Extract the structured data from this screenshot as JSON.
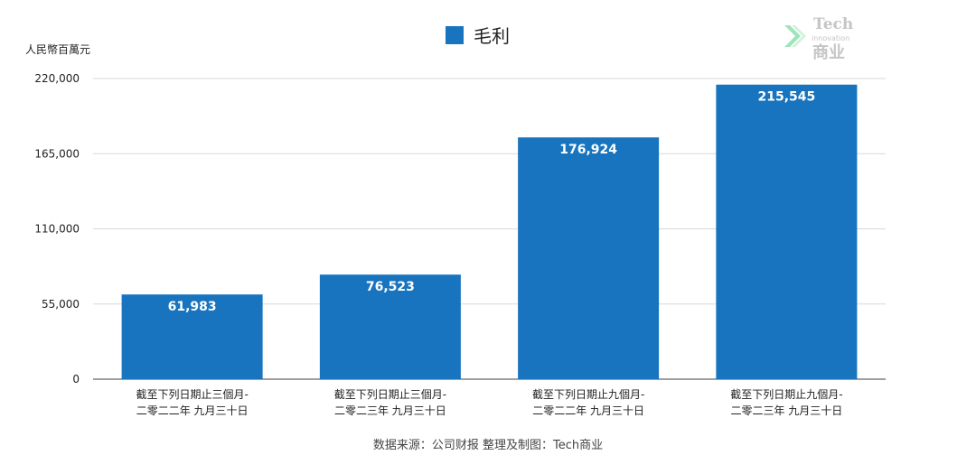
{
  "chart_data": {
    "type": "bar",
    "categories": [
      [
        "截至下列日期止三個月-",
        "二零二二年 九月三十日"
      ],
      [
        "截至下列日期止三個月-",
        "二零二三年 九月三十日"
      ],
      [
        "截至下列日期止九個月-",
        "二零二二年 九月三十日"
      ],
      [
        "截至下列日期止九個月-",
        "二零二三年 九月三十日"
      ]
    ],
    "series": [
      {
        "name": "毛利",
        "values": [
          61983,
          76523,
          176924,
          215545
        ],
        "color": "#1874be"
      }
    ],
    "value_labels": [
      "61,983",
      "76,523",
      "176,924",
      "215,545"
    ],
    "ylabel": "人民幣百萬元",
    "ylim": [
      0,
      220000
    ],
    "yticks": [
      0,
      55000,
      110000,
      165000,
      220000
    ],
    "ytick_labels": [
      "0",
      "55,000",
      "110,000",
      "165,000",
      "220,000"
    ],
    "grid": true,
    "legend_position": "top-center",
    "source": "数据来源：公司财报 整理及制图：Tech商业"
  },
  "logo": {
    "line1": "Tech",
    "line2": "innovation",
    "line3": "商业"
  }
}
